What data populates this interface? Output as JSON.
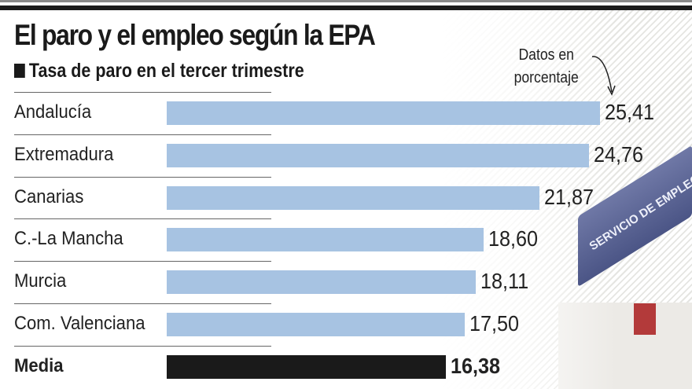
{
  "chart_data": {
    "type": "bar",
    "orientation": "horizontal",
    "title": "El paro y el empleo según la EPA",
    "subtitle": "Tasa de paro en el tercer trimestre",
    "annotation": "Datos en porcentaje",
    "categories": [
      "Andalucía",
      "Extremadura",
      "Canarias",
      "C.-La Mancha",
      "Murcia",
      "Com. Valenciana",
      "Media"
    ],
    "values": [
      25.41,
      24.76,
      21.87,
      18.6,
      18.11,
      17.5,
      16.38
    ],
    "value_labels": [
      "25,41",
      "24,76",
      "21,87",
      "18,60",
      "18,11",
      "17,50",
      "16,38"
    ],
    "xlim": [
      0,
      25.41
    ],
    "colors": {
      "bar": "#a7c3e2",
      "highlight": "#1a1a1a"
    }
  },
  "annotation_lines": [
    "Datos en",
    "porcentaje"
  ],
  "photo": {
    "sign_text": "SERVICIO DE EMPLEO"
  }
}
